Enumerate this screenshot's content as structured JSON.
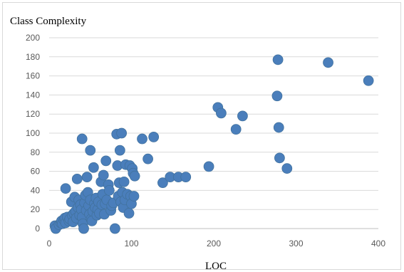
{
  "chart_data": {
    "type": "scatter",
    "title": "Class Complexity",
    "xlabel": "LOC",
    "ylabel": "",
    "xlim": [
      0,
      400
    ],
    "ylim": [
      0,
      200
    ],
    "x_ticks": [
      "0",
      "100",
      "200",
      "300",
      "400"
    ],
    "y_ticks": [
      "0",
      "20",
      "40",
      "60",
      "80",
      "100",
      "120",
      "140",
      "160",
      "180",
      "200"
    ],
    "grid": true,
    "legend": "none",
    "marker_color": "#4a7ebb",
    "points": [
      [
        7,
        3
      ],
      [
        8,
        0
      ],
      [
        12,
        4
      ],
      [
        14,
        6
      ],
      [
        15,
        8
      ],
      [
        16,
        5
      ],
      [
        18,
        9
      ],
      [
        19,
        11
      ],
      [
        20,
        42
      ],
      [
        20,
        6
      ],
      [
        22,
        12
      ],
      [
        24,
        8
      ],
      [
        25,
        10
      ],
      [
        27,
        28
      ],
      [
        28,
        14
      ],
      [
        29,
        7
      ],
      [
        30,
        16
      ],
      [
        31,
        33
      ],
      [
        32,
        18
      ],
      [
        33,
        11
      ],
      [
        34,
        52
      ],
      [
        35,
        22
      ],
      [
        36,
        30
      ],
      [
        37,
        14
      ],
      [
        38,
        25
      ],
      [
        39,
        20
      ],
      [
        40,
        94
      ],
      [
        40,
        12
      ],
      [
        41,
        5
      ],
      [
        42,
        0
      ],
      [
        43,
        27
      ],
      [
        44,
        35
      ],
      [
        45,
        19
      ],
      [
        46,
        54
      ],
      [
        47,
        38
      ],
      [
        48,
        24
      ],
      [
        49,
        15
      ],
      [
        50,
        82
      ],
      [
        50,
        30
      ],
      [
        51,
        10
      ],
      [
        52,
        8
      ],
      [
        53,
        18
      ],
      [
        54,
        64
      ],
      [
        55,
        26
      ],
      [
        56,
        22
      ],
      [
        57,
        32
      ],
      [
        58,
        14
      ],
      [
        59,
        20
      ],
      [
        60,
        28
      ],
      [
        61,
        16
      ],
      [
        63,
        49
      ],
      [
        64,
        25
      ],
      [
        65,
        36
      ],
      [
        66,
        56
      ],
      [
        67,
        15
      ],
      [
        68,
        26
      ],
      [
        69,
        71
      ],
      [
        70,
        30
      ],
      [
        72,
        46
      ],
      [
        73,
        40
      ],
      [
        75,
        19
      ],
      [
        76,
        24
      ],
      [
        78,
        27
      ],
      [
        80,
        0
      ],
      [
        82,
        99
      ],
      [
        83,
        66
      ],
      [
        84,
        34
      ],
      [
        85,
        48
      ],
      [
        86,
        82
      ],
      [
        87,
        28
      ],
      [
        88,
        100
      ],
      [
        89,
        38
      ],
      [
        90,
        22
      ],
      [
        91,
        49
      ],
      [
        92,
        30
      ],
      [
        93,
        67
      ],
      [
        95,
        36
      ],
      [
        97,
        16
      ],
      [
        98,
        66
      ],
      [
        99,
        34
      ],
      [
        100,
        26
      ],
      [
        101,
        63
      ],
      [
        102,
        58
      ],
      [
        103,
        34
      ],
      [
        104,
        55
      ],
      [
        113,
        94
      ],
      [
        120,
        73
      ],
      [
        127,
        96
      ],
      [
        138,
        48
      ],
      [
        147,
        54
      ],
      [
        157,
        54
      ],
      [
        166,
        54
      ],
      [
        194,
        65
      ],
      [
        205,
        127
      ],
      [
        209,
        121
      ],
      [
        227,
        104
      ],
      [
        235,
        118
      ],
      [
        277,
        139
      ],
      [
        278,
        177
      ],
      [
        279,
        106
      ],
      [
        280,
        74
      ],
      [
        289,
        63
      ],
      [
        339,
        174
      ],
      [
        388,
        155
      ]
    ]
  }
}
